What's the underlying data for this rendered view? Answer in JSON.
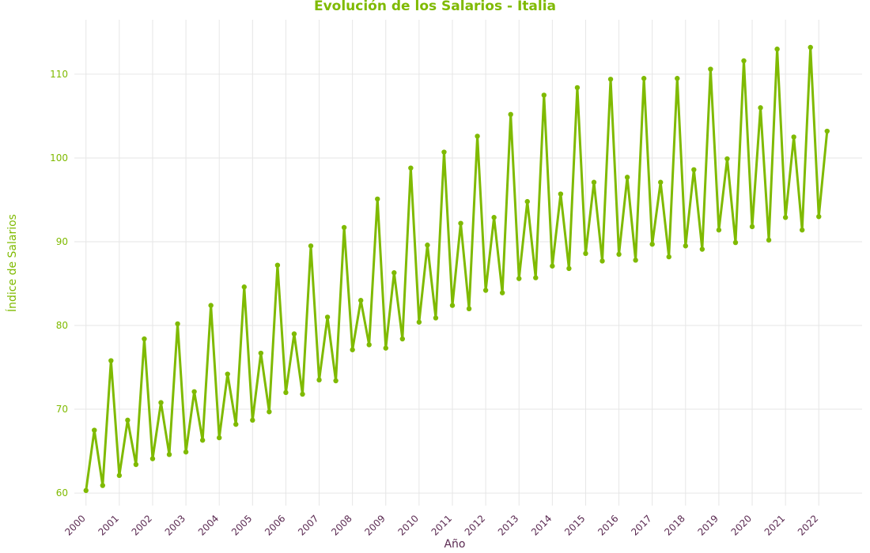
{
  "chart_data": {
    "type": "line",
    "title": "Evolución de los Salarios - Italia",
    "xlabel": "Año",
    "ylabel": "Índice de Salarios",
    "ylim": [
      58.5,
      116.5
    ],
    "xlim": [
      1999.65,
      2023.3
    ],
    "yticks": [
      60,
      70,
      80,
      90,
      100,
      110
    ],
    "xticks": [
      "2000",
      "2001",
      "2002",
      "2003",
      "2004",
      "2005",
      "2006",
      "2007",
      "2008",
      "2009",
      "2010",
      "2011",
      "2012",
      "2013",
      "2014",
      "2015",
      "2016",
      "2017",
      "2018",
      "2019",
      "2020",
      "2021",
      "2022"
    ],
    "grid": true,
    "legend": false,
    "colors": {
      "series": "#7fba00",
      "title": "#7fba00",
      "ylabel": "#7fba00",
      "ytick": "#7fba00",
      "xlabel": "#5b2a52",
      "xtick": "#5b2a52",
      "grid": "#e6e6e6"
    },
    "series": [
      {
        "x": [
          "2000-Q1",
          "2000-Q2",
          "2000-Q3",
          "2000-Q4",
          "2001-Q1",
          "2001-Q2",
          "2001-Q3",
          "2001-Q4",
          "2002-Q1",
          "2002-Q2",
          "2002-Q3",
          "2002-Q4",
          "2003-Q1",
          "2003-Q2",
          "2003-Q3",
          "2003-Q4",
          "2004-Q1",
          "2004-Q2",
          "2004-Q3",
          "2004-Q4",
          "2005-Q1",
          "2005-Q2",
          "2005-Q3",
          "2005-Q4",
          "2006-Q1",
          "2006-Q2",
          "2006-Q3",
          "2006-Q4",
          "2007-Q1",
          "2007-Q2",
          "2007-Q3",
          "2007-Q4",
          "2008-Q1",
          "2008-Q2",
          "2008-Q3",
          "2008-Q4",
          "2009-Q1",
          "2009-Q2",
          "2009-Q3",
          "2009-Q4",
          "2010-Q1",
          "2010-Q2",
          "2010-Q3",
          "2010-Q4",
          "2011-Q1",
          "2011-Q2",
          "2011-Q3",
          "2011-Q4",
          "2012-Q1",
          "2012-Q2",
          "2012-Q3",
          "2012-Q4",
          "2013-Q1",
          "2013-Q2",
          "2013-Q3",
          "2013-Q4",
          "2014-Q1",
          "2014-Q2",
          "2014-Q3",
          "2014-Q4",
          "2015-Q1",
          "2015-Q2",
          "2015-Q3",
          "2015-Q4",
          "2016-Q1",
          "2016-Q2",
          "2016-Q3",
          "2016-Q4",
          "2017-Q1",
          "2017-Q2",
          "2017-Q3",
          "2017-Q4",
          "2018-Q1",
          "2018-Q2",
          "2018-Q3",
          "2018-Q4",
          "2019-Q1",
          "2019-Q2",
          "2019-Q3",
          "2019-Q4",
          "2020-Q1",
          "2020-Q2",
          "2020-Q3",
          "2020-Q4",
          "2021-Q1",
          "2021-Q2",
          "2021-Q3",
          "2021-Q4",
          "2022-Q1",
          "2022-Q2"
        ],
        "values": [
          60.3,
          67.5,
          60.9,
          75.8,
          62.1,
          68.7,
          63.4,
          78.4,
          64.1,
          70.8,
          64.6,
          80.2,
          64.9,
          72.1,
          66.3,
          82.4,
          66.6,
          74.2,
          68.2,
          84.6,
          68.7,
          76.7,
          69.7,
          87.2,
          72.0,
          79.0,
          71.8,
          89.5,
          73.5,
          81.0,
          73.4,
          91.7,
          77.1,
          83.0,
          77.7,
          95.1,
          77.3,
          86.3,
          78.4,
          98.8,
          80.4,
          89.6,
          80.9,
          100.7,
          82.4,
          92.2,
          82.0,
          102.6,
          84.2,
          92.9,
          83.9,
          105.2,
          85.6,
          94.8,
          85.7,
          107.5,
          87.1,
          95.7,
          86.8,
          108.4,
          88.6,
          97.1,
          87.7,
          109.4,
          88.5,
          97.7,
          87.8,
          109.5,
          89.7,
          97.1,
          88.2,
          109.5,
          89.5,
          98.6,
          89.1,
          110.6,
          91.4,
          99.9,
          89.9,
          111.6,
          91.8,
          106.0,
          90.2,
          113.0,
          92.9,
          102.5,
          91.4,
          113.2,
          93.0,
          103.2
        ]
      }
    ]
  }
}
